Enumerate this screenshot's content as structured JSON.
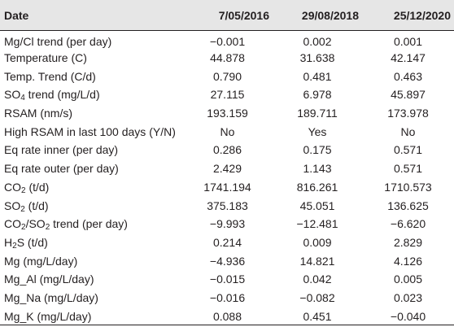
{
  "table": {
    "header": {
      "label": "Date",
      "columns": [
        "7/05/2016",
        "29/08/2018",
        "25/12/2020"
      ]
    },
    "rows": [
      {
        "label": "Mg/Cl trend (per day)",
        "values": [
          "−0.001",
          "0.002",
          "0.001"
        ]
      },
      {
        "label": "Temperature (C)",
        "values": [
          "44.878",
          "31.638",
          "42.147"
        ]
      },
      {
        "label": "Temp. Trend (C/d)",
        "values": [
          "0.790",
          "0.481",
          "0.463"
        ]
      },
      {
        "label_pre": "SO",
        "label_sub": "4",
        "label_post": " trend (mg/L/d)",
        "values": [
          "27.115",
          "6.978",
          "45.897"
        ]
      },
      {
        "label": "RSAM (nm/s)",
        "values": [
          "193.159",
          "189.711",
          "173.978"
        ]
      },
      {
        "label": "High RSAM in last 100 days (Y/N)",
        "values": [
          "No",
          "Yes",
          "No"
        ]
      },
      {
        "label": "Eq rate inner (per day)",
        "values": [
          "0.286",
          "0.175",
          "0.571"
        ]
      },
      {
        "label": "Eq rate outer (per day)",
        "values": [
          "2.429",
          "1.143",
          "0.571"
        ]
      },
      {
        "label_pre": "CO",
        "label_sub": "2",
        "label_post": " (t/d)",
        "values": [
          "1741.194",
          "816.261",
          "1710.573"
        ]
      },
      {
        "label_pre": "SO",
        "label_sub": "2",
        "label_post": " (t/d)",
        "values": [
          "375.183",
          "45.051",
          "136.625"
        ]
      },
      {
        "label_pre": "CO",
        "label_sub": "2",
        "label_mid": "/SO",
        "label_sub2": "2",
        "label_post": " trend (per day)",
        "values": [
          "−9.993",
          "−12.481",
          "−6.620"
        ]
      },
      {
        "label_pre": "H",
        "label_sub": "2",
        "label_post": "S (t/d)",
        "values": [
          "0.214",
          "0.009",
          "2.829"
        ]
      },
      {
        "label": "Mg (mg/L/day)",
        "values": [
          "−4.936",
          "14.821",
          "4.126"
        ]
      },
      {
        "label": "Mg_Al (mg/L/day)",
        "values": [
          "−0.015",
          "0.042",
          "0.005"
        ]
      },
      {
        "label": "Mg_Na (mg/L/day)",
        "values": [
          "−0.016",
          "−0.082",
          "0.023"
        ]
      },
      {
        "label": "Mg_K (mg/L/day)",
        "values": [
          "0.088",
          "0.451",
          "−0.040"
        ]
      }
    ]
  }
}
